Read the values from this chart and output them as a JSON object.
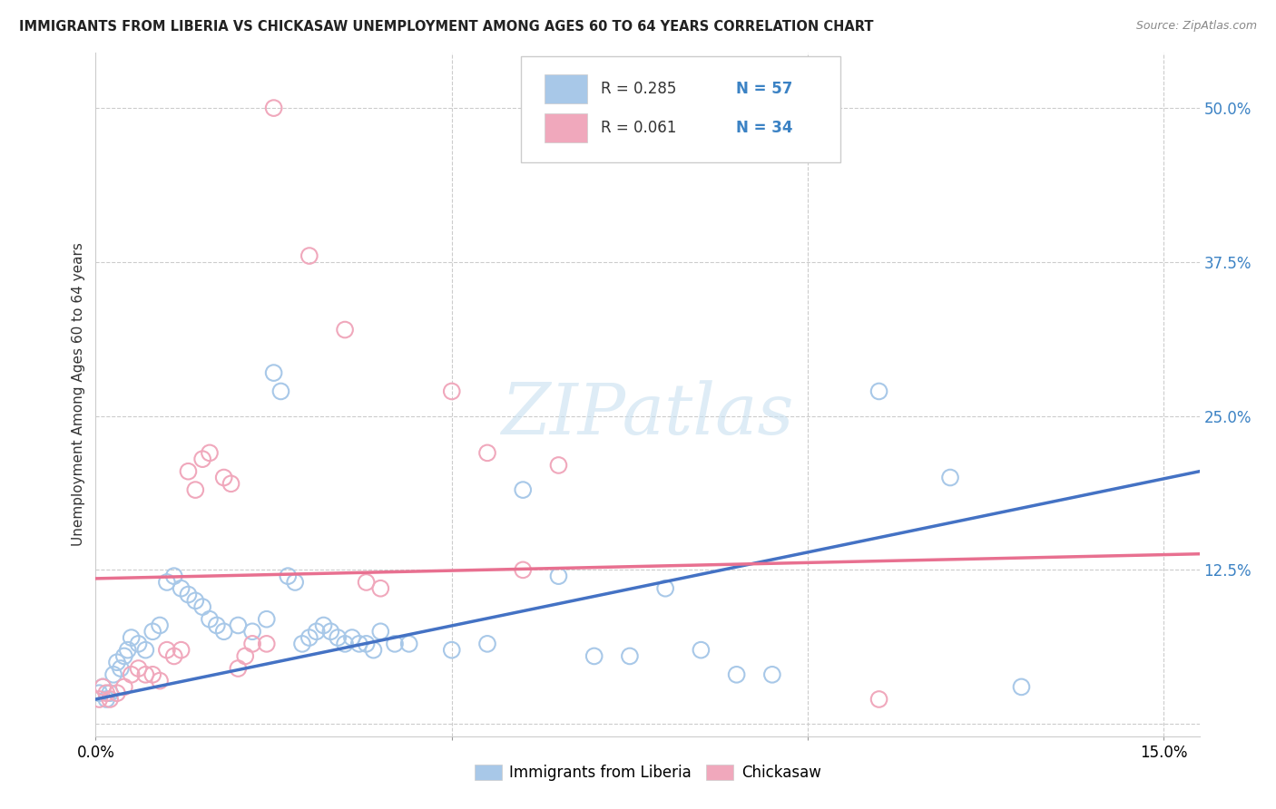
{
  "title": "IMMIGRANTS FROM LIBERIA VS CHICKASAW UNEMPLOYMENT AMONG AGES 60 TO 64 YEARS CORRELATION CHART",
  "source": "Source: ZipAtlas.com",
  "ylabel": "Unemployment Among Ages 60 to 64 years",
  "xlim": [
    0.0,
    0.155
  ],
  "ylim": [
    -0.01,
    0.545
  ],
  "xticks": [
    0.0,
    0.05,
    0.1,
    0.15
  ],
  "xticklabels": [
    "0.0%",
    "",
    "",
    "15.0%"
  ],
  "yticks_right": [
    0.0,
    0.125,
    0.25,
    0.375,
    0.5
  ],
  "yticklabels_right": [
    "",
    "12.5%",
    "25.0%",
    "37.5%",
    "50.0%"
  ],
  "color_blue": "#A8C8E8",
  "color_pink": "#F0A8BC",
  "color_blue_dark": "#4472C4",
  "color_pink_dark": "#E87090",
  "color_blue_text": "#3B82C4",
  "watermark": "ZIPatlas",
  "label1": "Immigrants from Liberia",
  "label2": "Chickasaw",
  "scatter_blue": [
    [
      0.0005,
      0.025
    ],
    [
      0.001,
      0.03
    ],
    [
      0.0015,
      0.02
    ],
    [
      0.002,
      0.025
    ],
    [
      0.0025,
      0.04
    ],
    [
      0.003,
      0.05
    ],
    [
      0.0035,
      0.045
    ],
    [
      0.004,
      0.055
    ],
    [
      0.0045,
      0.06
    ],
    [
      0.005,
      0.07
    ],
    [
      0.006,
      0.065
    ],
    [
      0.007,
      0.06
    ],
    [
      0.008,
      0.075
    ],
    [
      0.009,
      0.08
    ],
    [
      0.01,
      0.115
    ],
    [
      0.011,
      0.12
    ],
    [
      0.012,
      0.11
    ],
    [
      0.013,
      0.105
    ],
    [
      0.014,
      0.1
    ],
    [
      0.015,
      0.095
    ],
    [
      0.016,
      0.085
    ],
    [
      0.017,
      0.08
    ],
    [
      0.018,
      0.075
    ],
    [
      0.02,
      0.08
    ],
    [
      0.022,
      0.075
    ],
    [
      0.024,
      0.085
    ],
    [
      0.025,
      0.285
    ],
    [
      0.026,
      0.27
    ],
    [
      0.027,
      0.12
    ],
    [
      0.028,
      0.115
    ],
    [
      0.029,
      0.065
    ],
    [
      0.03,
      0.07
    ],
    [
      0.031,
      0.075
    ],
    [
      0.032,
      0.08
    ],
    [
      0.033,
      0.075
    ],
    [
      0.034,
      0.07
    ],
    [
      0.035,
      0.065
    ],
    [
      0.036,
      0.07
    ],
    [
      0.037,
      0.065
    ],
    [
      0.038,
      0.065
    ],
    [
      0.039,
      0.06
    ],
    [
      0.04,
      0.075
    ],
    [
      0.042,
      0.065
    ],
    [
      0.044,
      0.065
    ],
    [
      0.05,
      0.06
    ],
    [
      0.055,
      0.065
    ],
    [
      0.06,
      0.19
    ],
    [
      0.065,
      0.12
    ],
    [
      0.07,
      0.055
    ],
    [
      0.075,
      0.055
    ],
    [
      0.08,
      0.11
    ],
    [
      0.085,
      0.06
    ],
    [
      0.09,
      0.04
    ],
    [
      0.095,
      0.04
    ],
    [
      0.11,
      0.27
    ],
    [
      0.12,
      0.2
    ],
    [
      0.13,
      0.03
    ]
  ],
  "scatter_pink": [
    [
      0.0005,
      0.02
    ],
    [
      0.001,
      0.03
    ],
    [
      0.0015,
      0.025
    ],
    [
      0.002,
      0.02
    ],
    [
      0.003,
      0.025
    ],
    [
      0.004,
      0.03
    ],
    [
      0.005,
      0.04
    ],
    [
      0.006,
      0.045
    ],
    [
      0.007,
      0.04
    ],
    [
      0.008,
      0.04
    ],
    [
      0.009,
      0.035
    ],
    [
      0.01,
      0.06
    ],
    [
      0.011,
      0.055
    ],
    [
      0.012,
      0.06
    ],
    [
      0.013,
      0.205
    ],
    [
      0.014,
      0.19
    ],
    [
      0.015,
      0.215
    ],
    [
      0.016,
      0.22
    ],
    [
      0.018,
      0.2
    ],
    [
      0.019,
      0.195
    ],
    [
      0.02,
      0.045
    ],
    [
      0.021,
      0.055
    ],
    [
      0.022,
      0.065
    ],
    [
      0.024,
      0.065
    ],
    [
      0.025,
      0.5
    ],
    [
      0.03,
      0.38
    ],
    [
      0.035,
      0.32
    ],
    [
      0.038,
      0.115
    ],
    [
      0.04,
      0.11
    ],
    [
      0.05,
      0.27
    ],
    [
      0.055,
      0.22
    ],
    [
      0.06,
      0.125
    ],
    [
      0.065,
      0.21
    ],
    [
      0.11,
      0.02
    ]
  ],
  "trendline1_x": [
    0.0,
    0.155
  ],
  "trendline1_y": [
    0.02,
    0.205
  ],
  "trendline2_x": [
    0.0,
    0.155
  ],
  "trendline2_y": [
    0.118,
    0.138
  ]
}
